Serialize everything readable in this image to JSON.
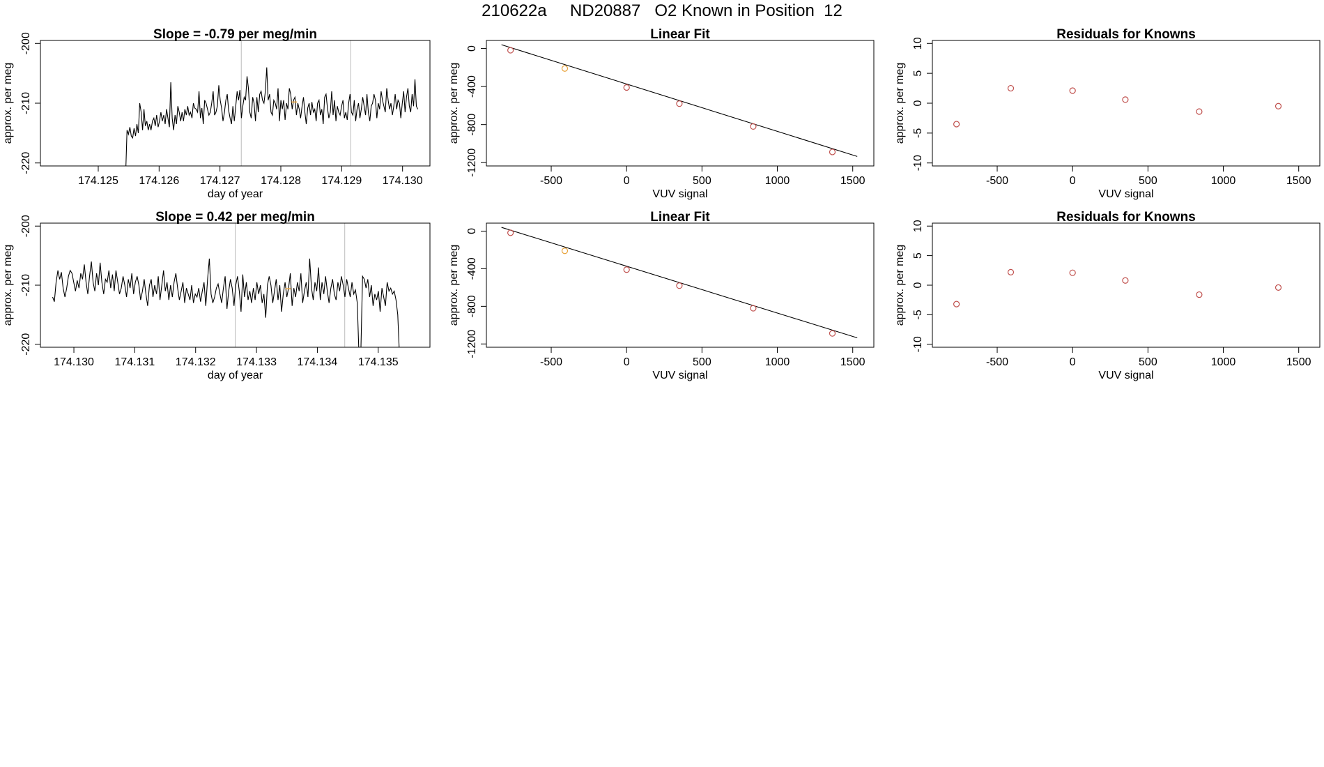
{
  "page": {
    "title": "210622a     ND20887   O2 Known in Position  12"
  },
  "colors": {
    "line": "#000000",
    "point": "#c0504d",
    "highlight": "#e8a33c",
    "vline": "#bbbbbb"
  },
  "chart_data": [
    {
      "id": "time-series-top",
      "type": "line",
      "title": "Slope =  -0.79  per meg/min",
      "xlabel": "day of year",
      "ylabel": "approx. per meg",
      "xlim": [
        174.12405,
        174.13045
      ],
      "ylim": [
        -220.5,
        -199.5
      ],
      "xticks": [
        174.125,
        174.126,
        174.127,
        174.128,
        174.129,
        174.13
      ],
      "xtick_labels": [
        "174.125",
        "174.126",
        "174.127",
        "174.128",
        "174.129",
        "174.130"
      ],
      "yticks": [
        -220,
        -210,
        -200
      ],
      "ytick_labels": [
        "-220",
        "-210",
        "-200"
      ],
      "vlines": [
        174.12735,
        174.12915
      ],
      "highlight_point": {
        "x": 174.12822,
        "y": -209.8
      },
      "x_start": 174.12545,
      "x_end": 174.13025,
      "values": [
        -222,
        -214.5,
        -215.2,
        -214,
        -215.5,
        -215.8,
        -214.2,
        -215.5,
        -213.5,
        -215,
        -210,
        -211.5,
        -214.5,
        -211,
        -213.8,
        -213,
        -214.5,
        -213.5,
        -214.5,
        -213,
        -212.5,
        -213.8,
        -212,
        -214,
        -213,
        -211.5,
        -213,
        -212,
        -213.5,
        -211,
        -212.5,
        -214,
        -206.5,
        -212.5,
        -214.5,
        -212,
        -213.5,
        -210.5,
        -211.5,
        -213,
        -211.5,
        -213,
        -211,
        -212,
        -210.5,
        -212,
        -211.5,
        -212.5,
        -210,
        -210.8,
        -211,
        -211.5,
        -208,
        -212.5,
        -210.8,
        -213.5,
        -209.5,
        -210,
        -211,
        -212,
        -211.5,
        -210,
        -208,
        -212,
        -211.5,
        -210.5,
        -207,
        -209.5,
        -210.8,
        -213,
        -211.5,
        -209.5,
        -208.5,
        -211.2,
        -212.5,
        -213.5,
        -210.5,
        -213,
        -210.5,
        -208,
        -209.5,
        -207.8,
        -212.5,
        -210.5,
        -209,
        -209.5,
        -205.5,
        -207.5,
        -211.5,
        -212.5,
        -209,
        -210,
        -213,
        -209,
        -211.5,
        -208.5,
        -208,
        -209.5,
        -210,
        -208,
        -204,
        -209.5,
        -208.5,
        -211.5,
        -212,
        -209.5,
        -210,
        -211,
        -207.5,
        -213,
        -209.5,
        -211,
        -209.5,
        -212.8,
        -210,
        -211,
        -207.5,
        -208.5,
        -211,
        -209.5,
        -209,
        -212,
        -210,
        -211,
        -212.5,
        -210.5,
        -209,
        -211.5,
        -213.5,
        -210.8,
        -210,
        -212,
        -209.8,
        -211.5,
        -211,
        -213,
        -210,
        -209.5,
        -212,
        -211,
        -213.5,
        -209,
        -208.5,
        -210.8,
        -212.5,
        -211.5,
        -208,
        -212,
        -209.5,
        -213,
        -210.5,
        -211.5,
        -212,
        -210.5,
        -209.5,
        -212.5,
        -211.5,
        -212.8,
        -210,
        -208.5,
        -211.5,
        -212,
        -209.5,
        -213,
        -211,
        -210,
        -212.5,
        -211,
        -209,
        -210.5,
        -212,
        -208.5,
        -211.5,
        -213,
        -210.5,
        -210,
        -208.5,
        -209.5,
        -212.5,
        -210,
        -211,
        -208,
        -209.5,
        -210.5,
        -211.5,
        -207.5,
        -209.5,
        -211,
        -210,
        -212,
        -210.5,
        -208.5,
        -211,
        -209.5,
        -210,
        -212.5,
        -210,
        -208,
        -211.5,
        -209,
        -207.5,
        -210.5,
        -211.5,
        -208.5,
        -210.5,
        -206,
        -210.5,
        -211
      ]
    },
    {
      "id": "linear-fit-top",
      "type": "scatter",
      "title": "Linear Fit",
      "xlabel": "VUV signal",
      "ylabel": "approx. per meg",
      "xlim": [
        -930,
        1640
      ],
      "ylim": [
        -1235,
        85
      ],
      "xticks": [
        -500,
        0,
        500,
        1000,
        1500
      ],
      "xtick_labels": [
        "-500",
        "0",
        "500",
        "1000",
        "1500"
      ],
      "yticks": [
        -1200,
        -800,
        -400,
        0
      ],
      "ytick_labels": [
        "-1200",
        "-800",
        "-400",
        "0"
      ],
      "fit_line": {
        "x": [
          -830,
          1530
        ],
        "y": [
          40,
          -1135
        ]
      },
      "points": [
        {
          "x": -770,
          "y": -18,
          "highlight": false
        },
        {
          "x": -410,
          "y": -210,
          "highlight": true
        },
        {
          "x": 0,
          "y": -410,
          "highlight": false
        },
        {
          "x": 350,
          "y": -580,
          "highlight": false
        },
        {
          "x": 840,
          "y": -820,
          "highlight": false
        },
        {
          "x": 1365,
          "y": -1088,
          "highlight": false
        }
      ]
    },
    {
      "id": "residuals-top",
      "type": "scatter",
      "title": "Residuals for Knowns",
      "xlabel": "VUV signal",
      "ylabel": "approx. per meg",
      "xlim": [
        -930,
        1640
      ],
      "ylim": [
        -10.5,
        10.5
      ],
      "xticks": [
        -500,
        0,
        500,
        1000,
        1500
      ],
      "xtick_labels": [
        "-500",
        "0",
        "500",
        "1000",
        "1500"
      ],
      "yticks": [
        -10,
        -5,
        0,
        5,
        10
      ],
      "ytick_labels": [
        "-10",
        "-5",
        "0",
        "5",
        "10"
      ],
      "points": [
        {
          "x": -770,
          "y": -3.5
        },
        {
          "x": -410,
          "y": 2.5
        },
        {
          "x": 0,
          "y": 2.1
        },
        {
          "x": 350,
          "y": 0.6
        },
        {
          "x": 840,
          "y": -1.4
        },
        {
          "x": 1365,
          "y": -0.5
        }
      ]
    },
    {
      "id": "time-series-bottom",
      "type": "line",
      "title": "Slope =  0.42  per meg/min",
      "xlabel": "day of year",
      "ylabel": "approx. per meg",
      "xlim": [
        174.12945,
        174.13585
      ],
      "ylim": [
        -220.5,
        -199.5
      ],
      "xticks": [
        174.13,
        174.131,
        174.132,
        174.133,
        174.134,
        174.135
      ],
      "xtick_labels": [
        "174.130",
        "174.131",
        "174.132",
        "174.133",
        "174.134",
        "174.135"
      ],
      "yticks": [
        -220,
        -210,
        -200
      ],
      "ytick_labels": [
        "-220",
        "-210",
        "-200"
      ],
      "vlines": [
        174.13265,
        174.13445
      ],
      "highlight_point": {
        "x": 174.13352,
        "y": -210.6
      },
      "x_start": 174.12965,
      "x_end": 174.13535,
      "values": [
        -212,
        -212.8,
        -209.5,
        -207.5,
        -209,
        -207.8,
        -210.5,
        -212,
        -210.5,
        -208.5,
        -207.5,
        -208,
        -209.5,
        -211,
        -209.2,
        -210.5,
        -208,
        -209,
        -206.5,
        -209.5,
        -211.5,
        -208.5,
        -206,
        -209.5,
        -211,
        -208,
        -210,
        -206.2,
        -209.5,
        -211.5,
        -209,
        -209.5,
        -207.5,
        -210.5,
        -208.2,
        -211,
        -207.5,
        -209.5,
        -211.5,
        -210.5,
        -208.5,
        -210,
        -212,
        -209,
        -210.5,
        -208,
        -211.5,
        -209.5,
        -208.5,
        -210,
        -212.5,
        -211,
        -209,
        -211.5,
        -213.5,
        -210,
        -209,
        -212,
        -210,
        -211.5,
        -208.5,
        -212.5,
        -210,
        -207.5,
        -211,
        -209.5,
        -212.5,
        -210,
        -212,
        -209.5,
        -208,
        -210.5,
        -212.5,
        -211,
        -209.5,
        -213,
        -210.5,
        -211.5,
        -212.5,
        -210,
        -213,
        -211.5,
        -212,
        -210.5,
        -212.8,
        -211,
        -209.5,
        -213.5,
        -209,
        -205.5,
        -211.5,
        -213,
        -212,
        -210.5,
        -209.8,
        -211.5,
        -213,
        -210.5,
        -208.5,
        -214,
        -211,
        -209,
        -210.5,
        -213.5,
        -210,
        -208.5,
        -211,
        -214.5,
        -208.2,
        -212,
        -209.5,
        -212.5,
        -211,
        -213,
        -210.5,
        -212.5,
        -209.5,
        -211.5,
        -210,
        -213,
        -211.5,
        -215.5,
        -210,
        -208.5,
        -210,
        -213,
        -211,
        -209,
        -212.5,
        -210,
        -214.5,
        -211.5,
        -209.5,
        -212,
        -210.5,
        -208,
        -213.5,
        -210.5,
        -212,
        -209.5,
        -211,
        -208,
        -213,
        -211,
        -209.5,
        -212,
        -205.5,
        -210.5,
        -212.5,
        -209.5,
        -211,
        -207,
        -212.5,
        -209.5,
        -211.5,
        -208.5,
        -211,
        -213,
        -210.5,
        -209,
        -211.5,
        -212.5,
        -209.5,
        -211,
        -208.5,
        -210,
        -212,
        -209,
        -210.5,
        -212,
        -209.5,
        -211.5,
        -210.8,
        -213,
        -222,
        -222,
        -208.5,
        -209,
        -210.5,
        -209,
        -212,
        -210,
        -213.5,
        -211.5,
        -212.5,
        -211,
        -214.5,
        -210.5,
        -212,
        -213.5,
        -209.5,
        -211,
        -210.5,
        -211.5,
        -211,
        -212.5,
        -215,
        -222
      ]
    },
    {
      "id": "linear-fit-bottom",
      "type": "scatter",
      "title": "Linear Fit",
      "xlabel": "VUV signal",
      "ylabel": "approx. per meg",
      "xlim": [
        -930,
        1640
      ],
      "ylim": [
        -1235,
        85
      ],
      "xticks": [
        -500,
        0,
        500,
        1000,
        1500
      ],
      "xtick_labels": [
        "-500",
        "0",
        "500",
        "1000",
        "1500"
      ],
      "yticks": [
        -1200,
        -800,
        -400,
        0
      ],
      "ytick_labels": [
        "-1200",
        "-800",
        "-400",
        "0"
      ],
      "fit_line": {
        "x": [
          -830,
          1530
        ],
        "y": [
          40,
          -1135
        ]
      },
      "points": [
        {
          "x": -770,
          "y": -18,
          "highlight": false
        },
        {
          "x": -410,
          "y": -210,
          "highlight": true
        },
        {
          "x": 0,
          "y": -410,
          "highlight": false
        },
        {
          "x": 350,
          "y": -580,
          "highlight": false
        },
        {
          "x": 840,
          "y": -820,
          "highlight": false
        },
        {
          "x": 1365,
          "y": -1088,
          "highlight": false
        }
      ]
    },
    {
      "id": "residuals-bottom",
      "type": "scatter",
      "title": "Residuals for Knowns",
      "xlabel": "VUV signal",
      "ylabel": "approx. per meg",
      "xlim": [
        -930,
        1640
      ],
      "ylim": [
        -10.5,
        10.5
      ],
      "xticks": [
        -500,
        0,
        500,
        1000,
        1500
      ],
      "xtick_labels": [
        "-500",
        "0",
        "500",
        "1000",
        "1500"
      ],
      "yticks": [
        -10,
        -5,
        0,
        5,
        10
      ],
      "ytick_labels": [
        "-10",
        "-5",
        "0",
        "5",
        "10"
      ],
      "points": [
        {
          "x": -770,
          "y": -3.2
        },
        {
          "x": -410,
          "y": 2.2
        },
        {
          "x": 0,
          "y": 2.1
        },
        {
          "x": 350,
          "y": 0.8
        },
        {
          "x": 840,
          "y": -1.6
        },
        {
          "x": 1365,
          "y": -0.4
        }
      ]
    }
  ]
}
